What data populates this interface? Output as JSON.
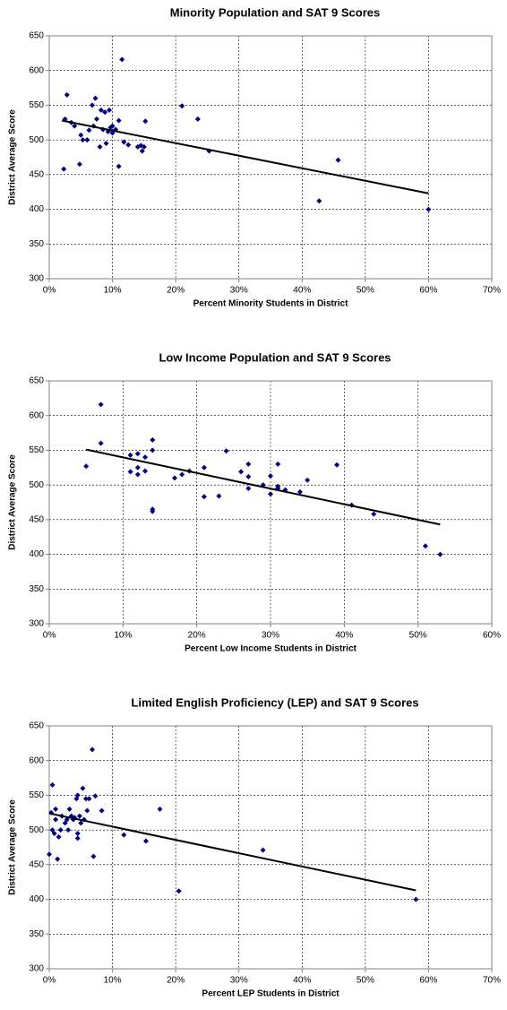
{
  "chart_data": [
    {
      "type": "scatter",
      "title": "Minority Population and SAT 9 Scores",
      "x_label": "Percent Minority Students in District",
      "y_label": "District Average Score",
      "color": "#000080",
      "grid": true,
      "x": [
        2.3,
        2.5,
        2.8,
        3.5,
        4,
        4.8,
        5,
        5.3,
        6,
        6.3,
        6.8,
        7,
        7.3,
        7.5,
        8,
        8.2,
        8.5,
        8.8,
        9,
        9.3,
        9.5,
        9.7,
        10,
        10,
        10.5,
        11,
        11,
        11.5,
        11.8,
        12.5,
        14,
        14.5,
        14.7,
        15,
        15.2,
        21,
        23.5,
        25.3,
        42.7,
        45.7,
        60
      ],
      "values": [
        458,
        530,
        565,
        525,
        520,
        465,
        507,
        500,
        500,
        514,
        550,
        520,
        560,
        530,
        490,
        543,
        515,
        540,
        495,
        512,
        543,
        518,
        510,
        520,
        515,
        528,
        462,
        616,
        497,
        493,
        490,
        492,
        484,
        490,
        527,
        549,
        530,
        484,
        412,
        471,
        400
      ],
      "trendline": {
        "x": [
          2,
          60
        ],
        "values": [
          528,
          423
        ]
      },
      "xlim": [
        0,
        70
      ],
      "xticks": [
        {
          "value": 0,
          "label": "0%"
        },
        {
          "value": 10,
          "label": "10%"
        },
        {
          "value": 20,
          "label": "20%"
        },
        {
          "value": 30,
          "label": "30%"
        },
        {
          "value": 40,
          "label": "40%"
        },
        {
          "value": 50,
          "label": "50%"
        },
        {
          "value": 60,
          "label": "60%"
        },
        {
          "value": 70,
          "label": "70%"
        }
      ],
      "ylim": [
        300,
        650
      ],
      "yticks": [
        300,
        350,
        400,
        450,
        500,
        550,
        600,
        650
      ]
    },
    {
      "type": "scatter",
      "title": "Low Income Population and SAT 9 Scores",
      "x_label": "Percent Low Income Students in District",
      "y_label": "District Average Score",
      "color": "#000080",
      "grid": true,
      "x": [
        5,
        7,
        7,
        11,
        11,
        12,
        12,
        12,
        13,
        13,
        14,
        14,
        14,
        14,
        17,
        18,
        19,
        21,
        21,
        23,
        24,
        26,
        27,
        27,
        27,
        29,
        30,
        30,
        31,
        31,
        31,
        32,
        34,
        35,
        39,
        41,
        44,
        51,
        53
      ],
      "values": [
        527,
        616,
        560,
        543,
        519,
        515,
        545,
        525,
        520,
        540,
        565,
        550,
        465,
        462,
        510,
        515,
        520,
        525,
        483,
        484,
        549,
        519,
        530,
        512,
        495,
        500,
        487,
        513,
        495,
        530,
        498,
        493,
        490,
        507,
        529,
        471,
        458,
        412,
        400
      ],
      "trendline": {
        "x": [
          5,
          53
        ],
        "values": [
          551,
          443
        ]
      },
      "xlim": [
        0,
        60
      ],
      "xticks": [
        {
          "value": 0,
          "label": "0%"
        },
        {
          "value": 10,
          "label": "10%"
        },
        {
          "value": 20,
          "label": "20%"
        },
        {
          "value": 30,
          "label": "30%"
        },
        {
          "value": 40,
          "label": "40%"
        },
        {
          "value": 50,
          "label": "50%"
        },
        {
          "value": 60,
          "label": "60%"
        }
      ],
      "ylim": [
        300,
        650
      ],
      "yticks": [
        300,
        350,
        400,
        450,
        500,
        550,
        600,
        650
      ]
    },
    {
      "type": "scatter",
      "title": "Limited English Proficiency (LEP) and SAT 9 Scores",
      "x_label": "Percent LEP Students in District",
      "y_label": "District Average Score",
      "color": "#000080",
      "grid": true,
      "x": [
        0,
        0.3,
        0.5,
        0.5,
        0.8,
        1,
        1,
        1.3,
        1.5,
        1.8,
        2,
        2.5,
        2.8,
        3,
        3.2,
        3.5,
        3.8,
        4,
        4.3,
        4.5,
        4.5,
        4.5,
        4.8,
        5,
        5.3,
        5.5,
        5.8,
        6,
        6.3,
        6.8,
        7,
        7.3,
        8.3,
        11.8,
        15.3,
        17.5,
        20.5,
        33.8,
        58
      ],
      "values": [
        465,
        525,
        565,
        500,
        495,
        515,
        530,
        458,
        490,
        500,
        520,
        510,
        515,
        500,
        530,
        520,
        515,
        518,
        545,
        495,
        488,
        550,
        520,
        510,
        560,
        515,
        545,
        528,
        545,
        616,
        462,
        549,
        528,
        493,
        484,
        530,
        412,
        471,
        400
      ],
      "trendline": {
        "x": [
          0,
          58
        ],
        "values": [
          524,
          413
        ]
      },
      "xlim": [
        0,
        70
      ],
      "xticks": [
        {
          "value": 0,
          "label": "0%"
        },
        {
          "value": 10,
          "label": "10%"
        },
        {
          "value": 20,
          "label": "20%"
        },
        {
          "value": 30,
          "label": "30%"
        },
        {
          "value": 40,
          "label": "40%"
        },
        {
          "value": 50,
          "label": "50%"
        },
        {
          "value": 60,
          "label": "60%"
        },
        {
          "value": 70,
          "label": "70%"
        }
      ],
      "ylim": [
        300,
        650
      ],
      "yticks": [
        300,
        350,
        400,
        450,
        500,
        550,
        600,
        650
      ]
    }
  ]
}
